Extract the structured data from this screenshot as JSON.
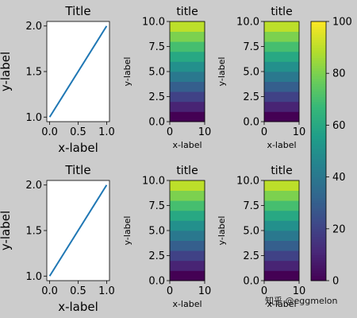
{
  "watermark": "知乎 @eggmelon",
  "colors": {
    "background": "#cccccc",
    "line": "#1f77b4",
    "axes_face": "#ffffff"
  },
  "colormap": {
    "name": "viridis",
    "stops": [
      "#440154",
      "#482878",
      "#3e4989",
      "#31688e",
      "#26828e",
      "#1f9e89",
      "#35b779",
      "#6ece58",
      "#b5de2b",
      "#fde725"
    ]
  },
  "chart_data": [
    {
      "id": "line-top",
      "type": "line",
      "title": "Title",
      "xlabel": "x-label",
      "ylabel": "y-label",
      "x": [
        0,
        1
      ],
      "y": [
        1,
        2
      ],
      "xlim": [
        -0.05,
        1.05
      ],
      "ylim": [
        0.95,
        2.05
      ],
      "xticks": [
        0,
        0.5,
        1
      ],
      "xtick_labels": [
        "0.0",
        "0.5",
        "1.0"
      ],
      "yticks": [
        1,
        1.5,
        2
      ],
      "ytick_labels": [
        "1.0",
        "1.5",
        "2.0"
      ],
      "grid": false
    },
    {
      "id": "heat-top-mid",
      "type": "heatmap",
      "title": "title",
      "xlabel": "x-label",
      "ylabel": "y-label",
      "xlim": [
        0,
        10
      ],
      "ylim": [
        0,
        10
      ],
      "xticks": [
        0,
        10
      ],
      "xtick_labels": [
        "0",
        "10"
      ],
      "yticks": [
        0,
        2.5,
        5,
        7.5,
        10
      ],
      "ytick_labels": [
        "0.0",
        "2.5",
        "5.0",
        "7.5",
        "10.0"
      ],
      "rows": 10,
      "cols": 2,
      "values": [
        [
          0,
          0
        ],
        [
          10,
          10
        ],
        [
          20,
          20
        ],
        [
          30,
          30
        ],
        [
          40,
          40
        ],
        [
          50,
          50
        ],
        [
          60,
          60
        ],
        [
          70,
          70
        ],
        [
          80,
          80
        ],
        [
          90,
          90
        ]
      ],
      "vmin": 0,
      "vmax": 100
    },
    {
      "id": "heat-top-right",
      "type": "heatmap",
      "title": "title",
      "xlabel": "x-label",
      "ylabel": "y-label",
      "xlim": [
        0,
        10
      ],
      "ylim": [
        0,
        10
      ],
      "xticks": [
        0,
        10
      ],
      "xtick_labels": [
        "0",
        "10"
      ],
      "yticks": [
        0,
        2.5,
        5,
        7.5,
        10
      ],
      "ytick_labels": [
        "0.0",
        "2.5",
        "5.0",
        "7.5",
        "10.0"
      ],
      "rows": 10,
      "cols": 2,
      "values": [
        [
          0,
          0
        ],
        [
          10,
          10
        ],
        [
          20,
          20
        ],
        [
          30,
          30
        ],
        [
          40,
          40
        ],
        [
          50,
          50
        ],
        [
          60,
          60
        ],
        [
          70,
          70
        ],
        [
          80,
          80
        ],
        [
          90,
          90
        ]
      ],
      "vmin": 0,
      "vmax": 100
    },
    {
      "id": "line-bottom",
      "type": "line",
      "title": "Title",
      "xlabel": "x-label",
      "ylabel": "y-label",
      "x": [
        0,
        1
      ],
      "y": [
        1,
        2
      ],
      "xlim": [
        -0.05,
        1.05
      ],
      "ylim": [
        0.95,
        2.05
      ],
      "xticks": [
        0,
        0.5,
        1
      ],
      "xtick_labels": [
        "0.0",
        "0.5",
        "1.0"
      ],
      "yticks": [
        1,
        1.5,
        2
      ],
      "ytick_labels": [
        "1.0",
        "1.5",
        "2.0"
      ],
      "grid": false
    },
    {
      "id": "heat-bottom-mid",
      "type": "heatmap",
      "title": "title",
      "xlabel": "x-label",
      "ylabel": "y-label",
      "xlim": [
        0,
        10
      ],
      "ylim": [
        0,
        10
      ],
      "xticks": [
        0,
        10
      ],
      "xtick_labels": [
        "0",
        "10"
      ],
      "yticks": [
        0,
        2.5,
        5,
        7.5,
        10
      ],
      "ytick_labels": [
        "0.0",
        "2.5",
        "5.0",
        "7.5",
        "10.0"
      ],
      "rows": 10,
      "cols": 2,
      "values": [
        [
          0,
          0
        ],
        [
          10,
          10
        ],
        [
          20,
          20
        ],
        [
          30,
          30
        ],
        [
          40,
          40
        ],
        [
          50,
          50
        ],
        [
          60,
          60
        ],
        [
          70,
          70
        ],
        [
          80,
          80
        ],
        [
          90,
          90
        ]
      ],
      "vmin": 0,
      "vmax": 100
    },
    {
      "id": "heat-bottom-right",
      "type": "heatmap",
      "title": "title",
      "xlabel": "x-label",
      "ylabel": "y-label",
      "xlim": [
        0,
        10
      ],
      "ylim": [
        0,
        10
      ],
      "xticks": [
        0,
        10
      ],
      "xtick_labels": [
        "0",
        "10"
      ],
      "yticks": [
        0,
        2.5,
        5,
        7.5,
        10
      ],
      "ytick_labels": [
        "0.0",
        "2.5",
        "5.0",
        "7.5",
        "10.0"
      ],
      "rows": 10,
      "cols": 2,
      "values": [
        [
          0,
          0
        ],
        [
          10,
          10
        ],
        [
          20,
          20
        ],
        [
          30,
          30
        ],
        [
          40,
          40
        ],
        [
          50,
          50
        ],
        [
          60,
          60
        ],
        [
          70,
          70
        ],
        [
          80,
          80
        ],
        [
          90,
          90
        ]
      ],
      "vmin": 0,
      "vmax": 100
    },
    {
      "id": "colorbar",
      "type": "heatmap",
      "ticks": [
        0,
        20,
        40,
        60,
        80,
        100
      ],
      "tick_labels": [
        "0",
        "20",
        "40",
        "60",
        "80",
        "100"
      ],
      "vmin": 0,
      "vmax": 100
    }
  ]
}
